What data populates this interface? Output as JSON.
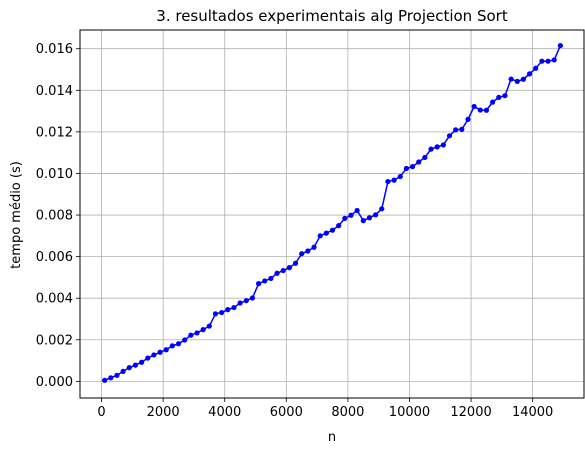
{
  "chart_data": {
    "type": "line",
    "title": "3. resultados experimentais alg Projection Sort",
    "xlabel": "n",
    "ylabel": "tempo médio (s)",
    "xlim": [
      -700,
      15700
    ],
    "ylim": [
      -0.0008,
      0.0169
    ],
    "xticks": [
      0,
      2000,
      4000,
      6000,
      8000,
      10000,
      12000,
      14000
    ],
    "xtick_labels": [
      "0",
      "2000",
      "4000",
      "6000",
      "8000",
      "10000",
      "12000",
      "14000"
    ],
    "yticks": [
      0,
      0.002,
      0.004,
      0.006,
      0.008,
      0.01,
      0.012,
      0.014,
      0.016
    ],
    "ytick_labels": [
      "0.000",
      "0.002",
      "0.004",
      "0.006",
      "0.008",
      "0.010",
      "0.012",
      "0.014",
      "0.016"
    ],
    "grid": true,
    "series": [
      {
        "color": "#0000ff",
        "marker": "circle",
        "x": [
          100,
          300,
          500,
          700,
          900,
          1100,
          1300,
          1500,
          1700,
          1900,
          2100,
          2300,
          2500,
          2700,
          2900,
          3100,
          3300,
          3500,
          3700,
          3900,
          4100,
          4300,
          4500,
          4700,
          4900,
          5100,
          5300,
          5500,
          5700,
          5900,
          6100,
          6300,
          6500,
          6700,
          6900,
          7100,
          7300,
          7500,
          7700,
          7900,
          8100,
          8300,
          8500,
          8700,
          8900,
          9100,
          9300,
          9500,
          9700,
          9900,
          10100,
          10300,
          10500,
          10700,
          10900,
          11100,
          11300,
          11500,
          11700,
          11900,
          12100,
          12300,
          12500,
          12700,
          12900,
          13100,
          13300,
          13500,
          13700,
          13900,
          14100,
          14300,
          14500,
          14700,
          14900
        ],
        "y": [
          5e-05,
          0.00017,
          0.00029,
          0.00048,
          0.00066,
          0.00078,
          0.00092,
          0.00112,
          0.00127,
          0.0014,
          0.00152,
          0.00171,
          0.00181,
          0.00199,
          0.00222,
          0.00233,
          0.00249,
          0.00266,
          0.00325,
          0.00331,
          0.00345,
          0.00355,
          0.00377,
          0.00388,
          0.00401,
          0.0047,
          0.00483,
          0.00495,
          0.0052,
          0.00533,
          0.00547,
          0.00568,
          0.00614,
          0.00627,
          0.00645,
          0.007,
          0.00713,
          0.00727,
          0.00749,
          0.00784,
          0.00799,
          0.00822,
          0.00773,
          0.00787,
          0.00801,
          0.0083,
          0.00961,
          0.00968,
          0.00985,
          0.01024,
          0.01033,
          0.01055,
          0.01077,
          0.01117,
          0.01128,
          0.01137,
          0.01181,
          0.0121,
          0.01212,
          0.0126,
          0.01322,
          0.01305,
          0.01304,
          0.01343,
          0.01366,
          0.01374,
          0.01454,
          0.01443,
          0.01453,
          0.01479,
          0.01506,
          0.0154,
          0.0154,
          0.01546,
          0.01615
        ]
      }
    ]
  }
}
